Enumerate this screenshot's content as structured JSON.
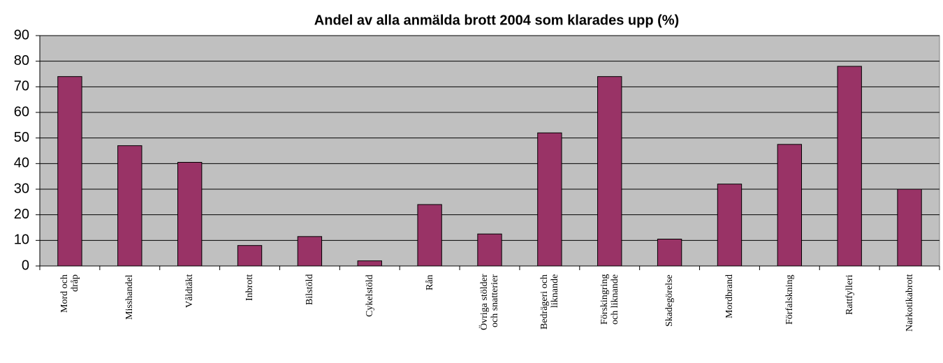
{
  "chart_data": {
    "type": "bar",
    "title": "Andel av alla anmälda brott 2004 som klarades upp (%)",
    "categories": [
      "Mord och\ndråp",
      "Misshandel",
      "Våldtäkt",
      "Inbrott",
      "Bilstöld",
      "Cykelstöld",
      "Rån",
      "Övriga stölder\noch snatterier",
      "Bedrägeri och\nliknande",
      "Förskingring\noch liknande",
      "Skadegörelse",
      "Mordbrand",
      "Förfalskning",
      "Rattfylleri",
      "Narkotikabrott"
    ],
    "values": [
      74,
      47,
      40.5,
      8,
      11.5,
      2,
      24,
      12.5,
      52,
      74,
      10.5,
      32,
      47.5,
      78,
      30
    ],
    "color": "#993366",
    "plot_background": "#c0c0c0",
    "ylim": [
      0,
      90
    ],
    "yticks": [
      0,
      10,
      20,
      30,
      40,
      50,
      60,
      70,
      80,
      90
    ],
    "grid": true
  }
}
